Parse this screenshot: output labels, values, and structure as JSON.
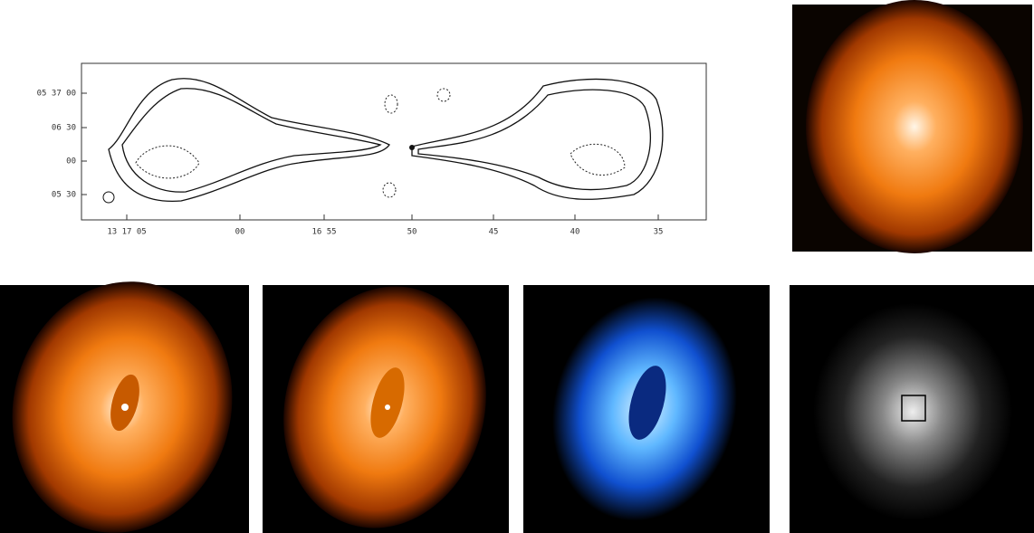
{
  "contour_map": {
    "y_labels": [
      "05 37 00",
      "06 30",
      "00",
      "05 30"
    ],
    "x_labels": [
      "13 17 05",
      "00",
      "16 55",
      "50",
      "45",
      "40",
      "35"
    ]
  }
}
